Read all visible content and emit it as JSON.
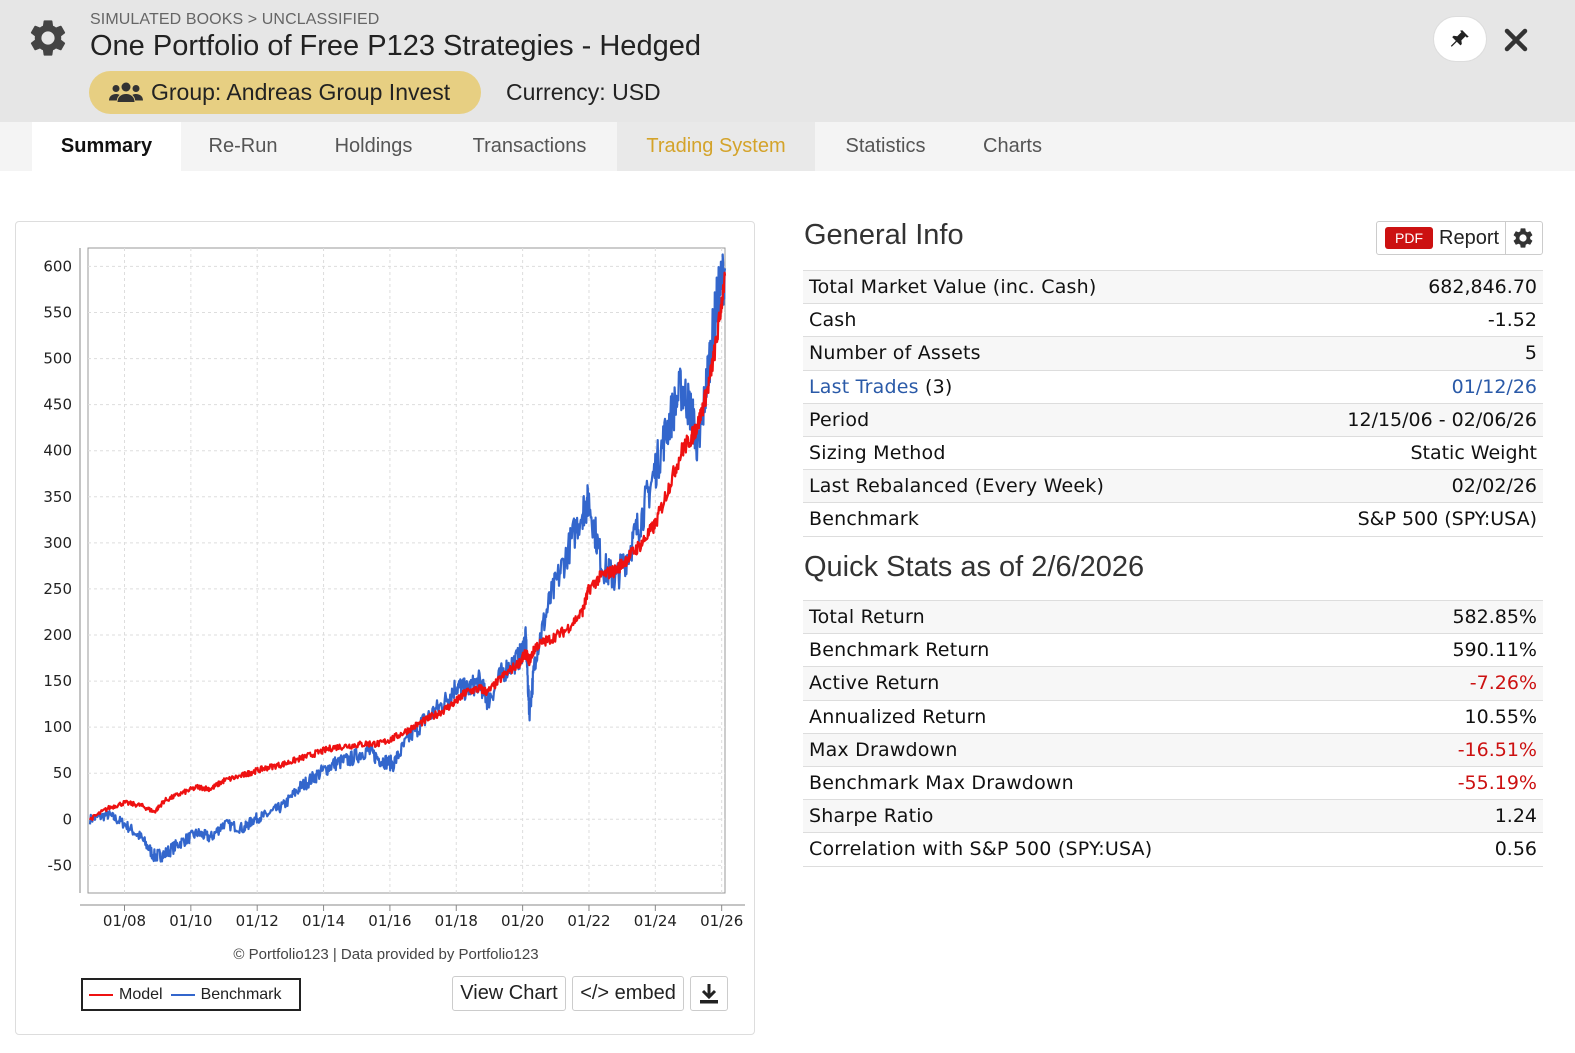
{
  "header": {
    "breadcrumb": "SIMULATED BOOKS > UNCLASSIFIED",
    "title": "One Portfolio of Free P123 Strategies - Hedged",
    "group_label": "Group: Andreas Group Invest",
    "currency_label": "Currency: USD"
  },
  "tabs": [
    {
      "label": "Summary"
    },
    {
      "label": "Re-Run"
    },
    {
      "label": "Holdings"
    },
    {
      "label": "Transactions"
    },
    {
      "label": "Trading System"
    },
    {
      "label": "Statistics"
    },
    {
      "label": "Charts"
    }
  ],
  "general_info": {
    "title": "General Info",
    "report_badge": "PDF",
    "report_label": "Report",
    "rows": [
      {
        "label": "Total Market Value (inc. Cash)",
        "value": "682,846.70"
      },
      {
        "label": "Cash",
        "value": "-1.52"
      },
      {
        "label": "Number of Assets",
        "value": "5"
      },
      {
        "label": "Last Trades",
        "label_suffix": "(3)",
        "value": "01/12/26"
      },
      {
        "label": "Period",
        "value": "12/15/06 - 02/06/26"
      },
      {
        "label": "Sizing Method",
        "value": "Static Weight"
      },
      {
        "label": "Last Rebalanced (Every Week)",
        "value": "02/02/26"
      },
      {
        "label": "Benchmark",
        "value": "S&P 500 (SPY:USA)"
      }
    ]
  },
  "quick_stats": {
    "title": "Quick Stats as of 2/6/2026",
    "rows": [
      {
        "label": "Total Return",
        "value": "582.85%"
      },
      {
        "label": "Benchmark Return",
        "value": "590.11%"
      },
      {
        "label": "Active Return",
        "value": "-7.26%"
      },
      {
        "label": "Annualized Return",
        "value": "10.55%"
      },
      {
        "label": "Max Drawdown",
        "value": "-16.51%"
      },
      {
        "label": "Benchmark Max Drawdown",
        "value": "-55.19%"
      },
      {
        "label": "Sharpe Ratio",
        "value": "1.24"
      },
      {
        "label": "Correlation with S&P 500 (SPY:USA)",
        "value": "0.56"
      }
    ]
  },
  "chart_panel": {
    "copyright": "© Portfolio123 | Data provided by Portfolio123",
    "view_chart_label": "View Chart",
    "embed_label": "</> embed"
  },
  "colors": {
    "model": "#ee1111",
    "benchmark": "#3366cc",
    "negative": "#cc1111",
    "link": "#2a5aa8",
    "group_badge": "#e7cf82",
    "active_tab_accent": "#d4a32a"
  },
  "chart_data": {
    "type": "line",
    "title": "",
    "xlabel": "",
    "ylabel": "",
    "x_ticks": [
      "01/08",
      "01/10",
      "01/12",
      "01/14",
      "01/16",
      "01/18",
      "01/20",
      "01/22",
      "01/24",
      "01/26"
    ],
    "y_ticks": [
      -50,
      0,
      50,
      100,
      150,
      200,
      250,
      300,
      350,
      400,
      450,
      500,
      550,
      600
    ],
    "ylim": [
      -80,
      620
    ],
    "xlim": [
      2006.9,
      2026.1
    ],
    "grid": true,
    "legend": "bottom-left",
    "x": [
      2006.96,
      2007.5,
      2008.0,
      2008.5,
      2008.9,
      2009.2,
      2009.7,
      2010.2,
      2010.6,
      2011.0,
      2011.6,
      2011.9,
      2012.3,
      2012.8,
      2013.3,
      2013.8,
      2014.3,
      2014.8,
      2015.3,
      2015.7,
      2016.1,
      2016.6,
      2017.1,
      2017.6,
      2018.0,
      2018.3,
      2018.7,
      2018.95,
      2019.4,
      2019.9,
      2020.1,
      2020.2,
      2020.4,
      2020.8,
      2021.3,
      2021.8,
      2022.0,
      2022.4,
      2022.8,
      2023.2,
      2023.6,
      2024.0,
      2024.4,
      2024.8,
      2025.1,
      2025.3,
      2025.6,
      2025.85,
      2026.1
    ],
    "series": [
      {
        "name": "Model",
        "values": [
          0,
          12,
          18,
          15,
          8,
          20,
          28,
          35,
          33,
          42,
          48,
          52,
          56,
          60,
          66,
          72,
          78,
          80,
          82,
          82,
          88,
          98,
          108,
          118,
          128,
          138,
          142,
          138,
          155,
          170,
          180,
          172,
          188,
          195,
          205,
          225,
          250,
          265,
          270,
          285,
          300,
          320,
          360,
          400,
          415,
          430,
          470,
          520,
          590
        ]
      },
      {
        "name": "Benchmark",
        "values": [
          0,
          5,
          -5,
          -20,
          -40,
          -38,
          -25,
          -15,
          -20,
          -5,
          -10,
          0,
          5,
          15,
          35,
          48,
          60,
          65,
          75,
          65,
          60,
          90,
          110,
          125,
          145,
          140,
          150,
          128,
          160,
          175,
          195,
          115,
          180,
          235,
          285,
          335,
          345,
          275,
          260,
          290,
          330,
          380,
          430,
          470,
          440,
          400,
          490,
          560,
          598
        ]
      }
    ]
  }
}
